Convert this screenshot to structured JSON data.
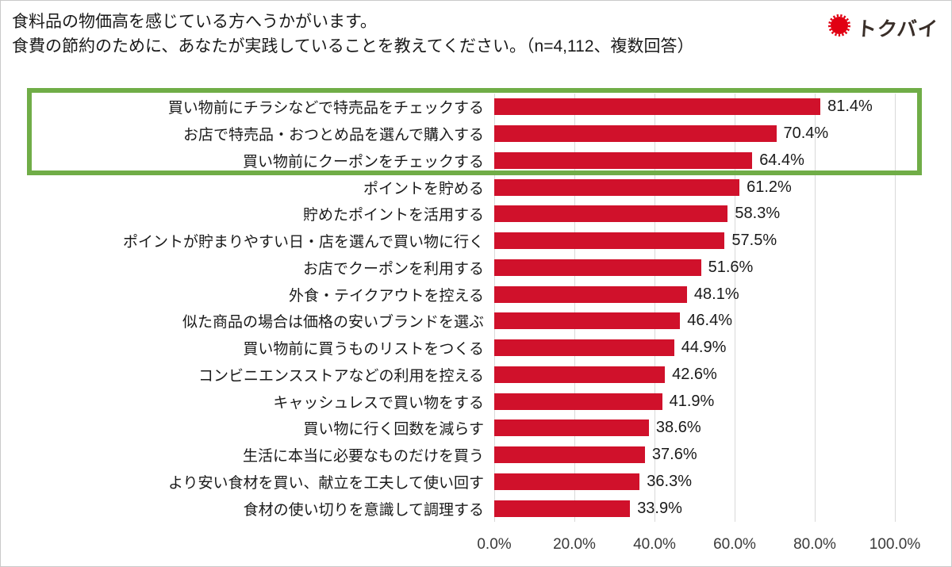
{
  "header": {
    "line1": "食料品の物価高を感じている方へうかがいます。",
    "line2": "食費の節約のために、あなたが実践していることを教えてください。（n=4,112、複数回答）"
  },
  "logo": {
    "text": "トクバイ",
    "mark_color": "#e10013",
    "text_color": "#392e28"
  },
  "chart_data": {
    "type": "bar",
    "orientation": "horizontal",
    "title": "",
    "xlabel": "",
    "ylabel": "",
    "xlim": [
      0,
      100
    ],
    "grid": true,
    "bar_color": "#d0112b",
    "categories": [
      "買い物前にチラシなどで特売品をチェックする",
      "お店で特売品・おつとめ品を選んで購入する",
      "買い物前にクーポンをチェックする",
      "ポイントを貯める",
      "貯めたポイントを活用する",
      "ポイントが貯まりやすい日・店を選んで買い物に行く",
      "お店でクーポンを利用する",
      "外食・テイクアウトを控える",
      "似た商品の場合は価格の安いブランドを選ぶ",
      "買い物前に買うものリストをつくる",
      "コンビニエンスストアなどの利用を控える",
      "キャッシュレスで買い物をする",
      "買い物に行く回数を減らす",
      "生活に本当に必要なものだけを買う",
      "より安い食材を買い、献立を工夫して使い回す",
      "食材の使い切りを意識して調理する"
    ],
    "values": [
      81.4,
      70.4,
      64.4,
      61.2,
      58.3,
      57.5,
      51.6,
      48.1,
      46.4,
      44.9,
      42.6,
      41.9,
      38.6,
      37.6,
      36.3,
      33.9
    ],
    "x_ticks": [
      "0.0%",
      "20.0%",
      "40.0%",
      "60.0%",
      "80.0%",
      "100.0%"
    ],
    "highlight": {
      "rows": [
        0,
        1,
        2
      ],
      "box_color": "#70ad47"
    }
  }
}
